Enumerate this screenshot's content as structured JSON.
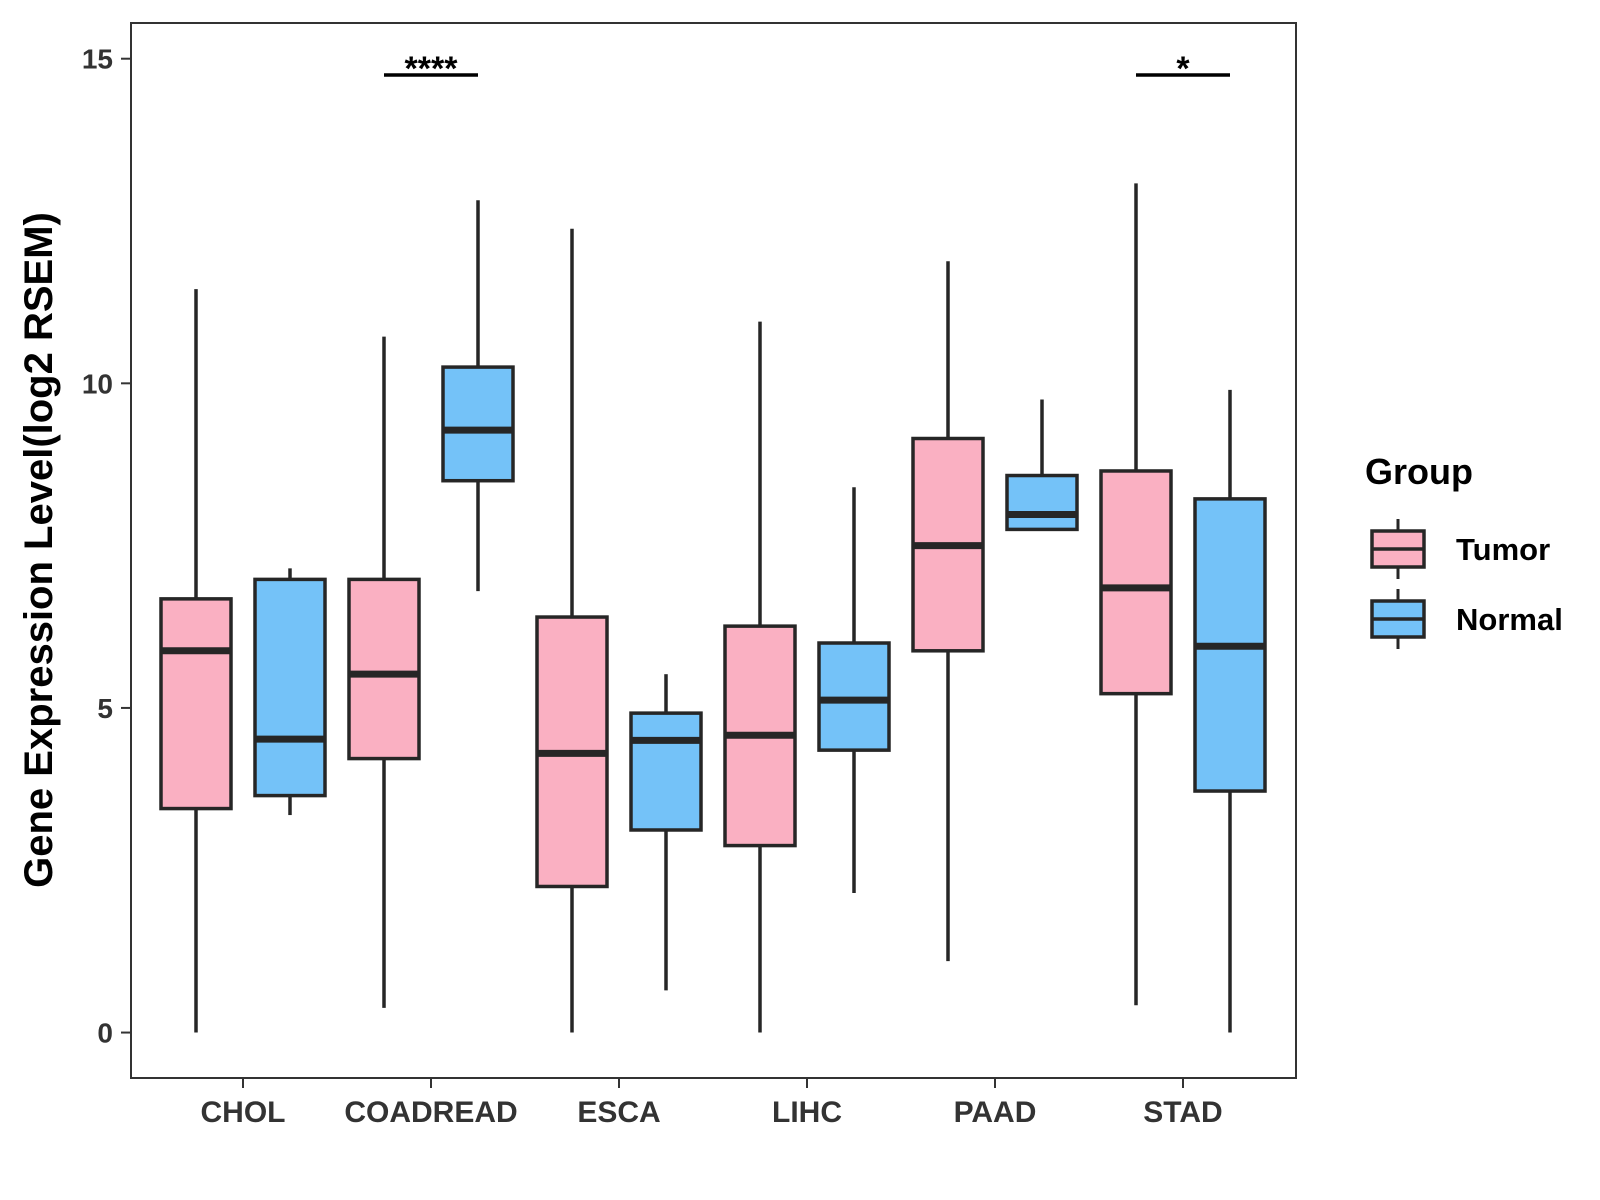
{
  "chart_data": {
    "type": "boxplot",
    "title": "",
    "xlabel": "",
    "ylabel": "Gene Expression Level(log2 RSEM)",
    "ylim": [
      -0.7,
      15.55
    ],
    "yticks": [
      0,
      5,
      10,
      15
    ],
    "categories": [
      "CHOL",
      "COADREAD",
      "ESCA",
      "LIHC",
      "PAAD",
      "STAD"
    ],
    "legend": {
      "title": "Group",
      "position": "right"
    },
    "series": [
      {
        "name": "Tumor",
        "color": "#fab0c2",
        "boxes": [
          {
            "min": 0.0,
            "q1": 3.45,
            "median": 5.88,
            "q3": 6.68,
            "max": 11.45
          },
          {
            "min": 0.38,
            "q1": 4.22,
            "median": 5.52,
            "q3": 6.98,
            "max": 10.72
          },
          {
            "min": 0.0,
            "q1": 2.25,
            "median": 4.3,
            "q3": 6.4,
            "max": 12.38
          },
          {
            "min": 0.0,
            "q1": 2.88,
            "median": 4.58,
            "q3": 6.26,
            "max": 10.95
          },
          {
            "min": 1.1,
            "q1": 5.88,
            "median": 7.5,
            "q3": 9.15,
            "max": 11.88
          },
          {
            "min": 0.42,
            "q1": 5.22,
            "median": 6.85,
            "q3": 8.65,
            "max": 13.08
          }
        ]
      },
      {
        "name": "Normal",
        "color": "#74c2f8",
        "boxes": [
          {
            "min": 3.35,
            "q1": 3.65,
            "median": 4.52,
            "q3": 6.98,
            "max": 7.15
          },
          {
            "min": 6.8,
            "q1": 8.5,
            "median": 9.28,
            "q3": 10.25,
            "max": 12.82
          },
          {
            "min": 0.65,
            "q1": 3.12,
            "median": 4.5,
            "q3": 4.92,
            "max": 5.52
          },
          {
            "min": 2.15,
            "q1": 4.35,
            "median": 5.12,
            "q3": 6.0,
            "max": 8.4
          },
          {
            "min": 7.75,
            "q1": 7.75,
            "median": 7.98,
            "q3": 8.58,
            "max": 9.75
          },
          {
            "min": 0.0,
            "q1": 3.72,
            "median": 5.95,
            "q3": 8.22,
            "max": 9.9
          }
        ]
      }
    ],
    "annotations": [
      {
        "category": "COADREAD",
        "label": "****",
        "y": 14.75
      },
      {
        "category": "STAD",
        "label": "*",
        "y": 14.75
      }
    ]
  }
}
